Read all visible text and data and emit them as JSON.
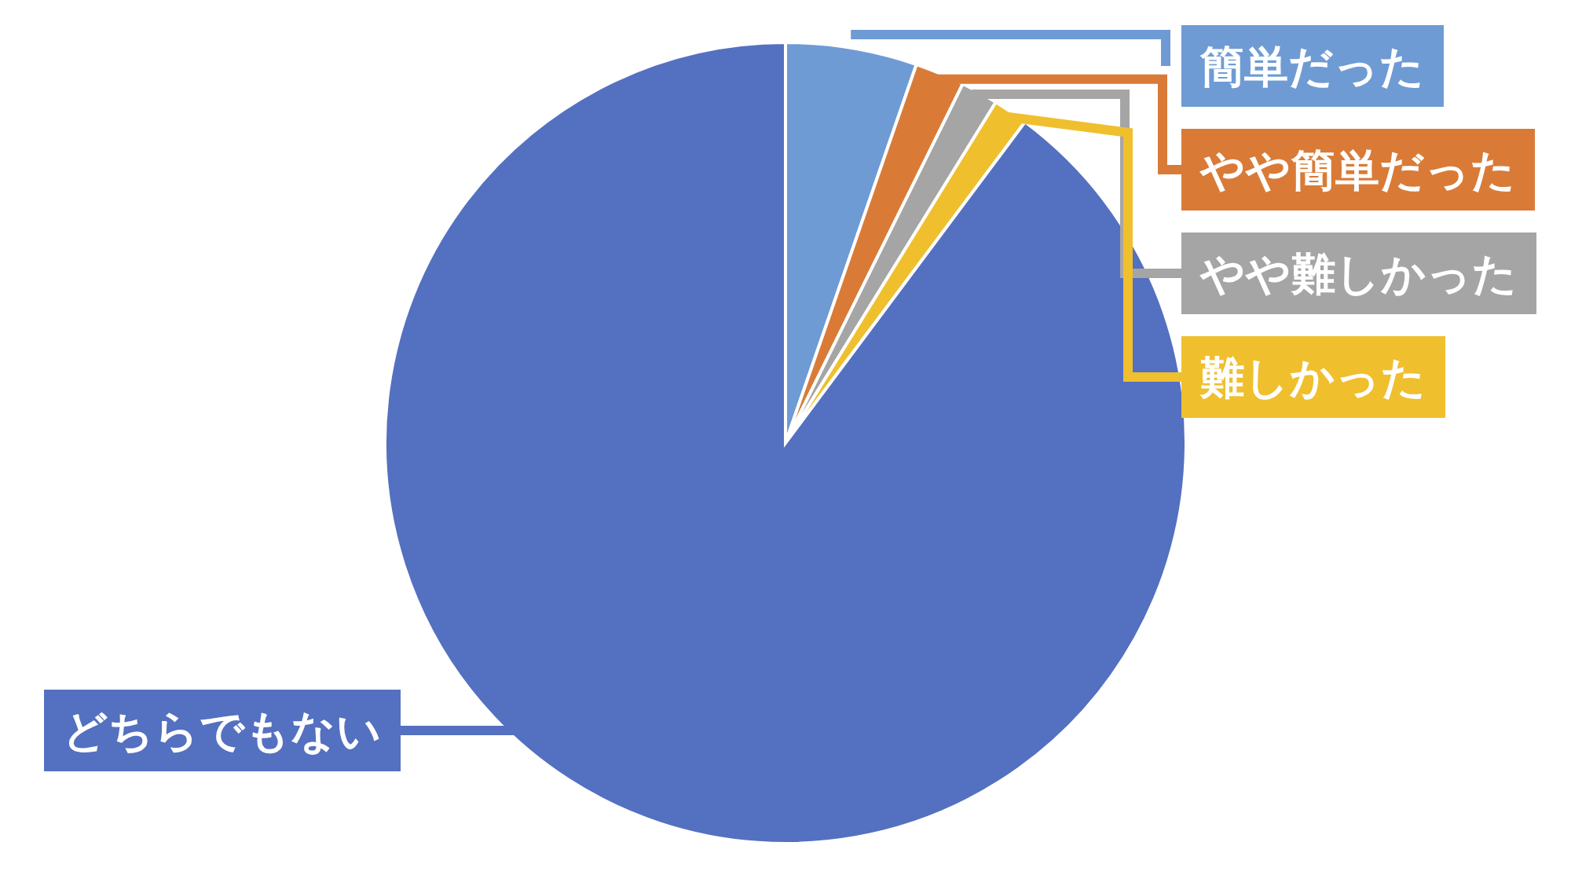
{
  "chart_data": {
    "type": "pie",
    "categories": [
      "簡単だった",
      "やや簡単だった",
      "やや難しかった",
      "難しかった",
      "どちらでもない"
    ],
    "values": [
      5.3,
      2.0,
      1.5,
      1.4,
      89.8
    ],
    "colors": [
      "#6f9bd4",
      "#d97b37",
      "#a5a5a5",
      "#f0bf2e",
      "#5470c0"
    ]
  }
}
